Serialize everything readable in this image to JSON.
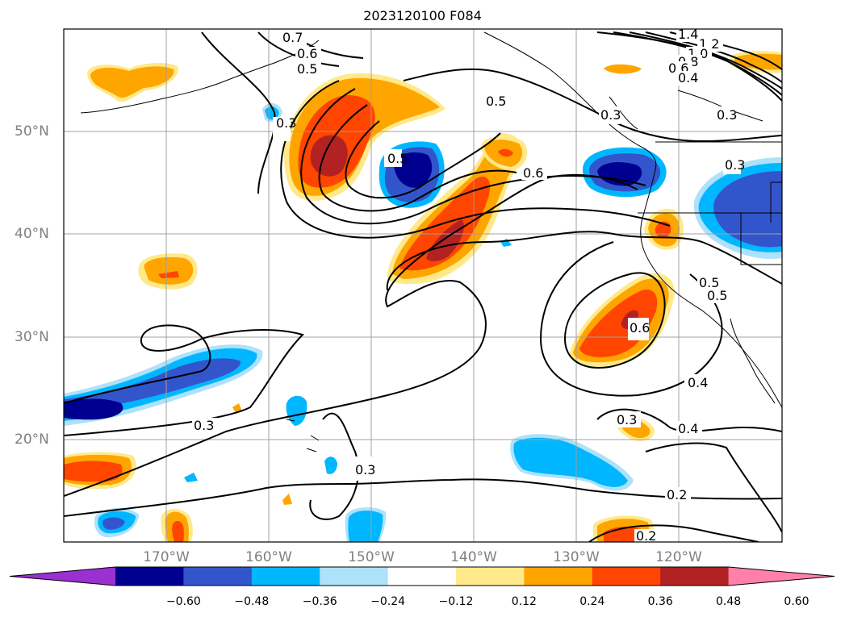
{
  "title": "2023120100 F084",
  "lat_labels": [
    "50°N",
    "40°N",
    "30°N",
    "20°N"
  ],
  "lon_labels": [
    "170°W",
    "160°W",
    "150°W",
    "140°W",
    "130°W",
    "120°W"
  ],
  "colorbar": {
    "tick_labels": [
      "−0.60",
      "−0.48",
      "−0.36",
      "−0.24",
      "−0.12",
      "0.12",
      "0.24",
      "0.36",
      "0.48",
      "0.60"
    ],
    "colors": [
      "#9b30d0",
      "#000090",
      "#3355cc",
      "#00b7ff",
      "#aee1fa",
      "#ffffff",
      "#ffe98a",
      "#ffa500",
      "#ff4500",
      "#b22222",
      "#ff80aa"
    ]
  },
  "contour_labels": [
    "0.7",
    "0.6",
    "0.5",
    "0.5",
    "0.3",
    "0.6",
    "0.5",
    "0.6",
    "0.4",
    "0.3",
    "0.3",
    "0.4",
    "0.2",
    "0.2",
    "1.4",
    "1.2",
    "1.0",
    "0.8",
    "0.6",
    "0.4",
    "0.3",
    "0.3",
    "0.3",
    "0.3",
    "0.5",
    "0.5"
  ]
}
